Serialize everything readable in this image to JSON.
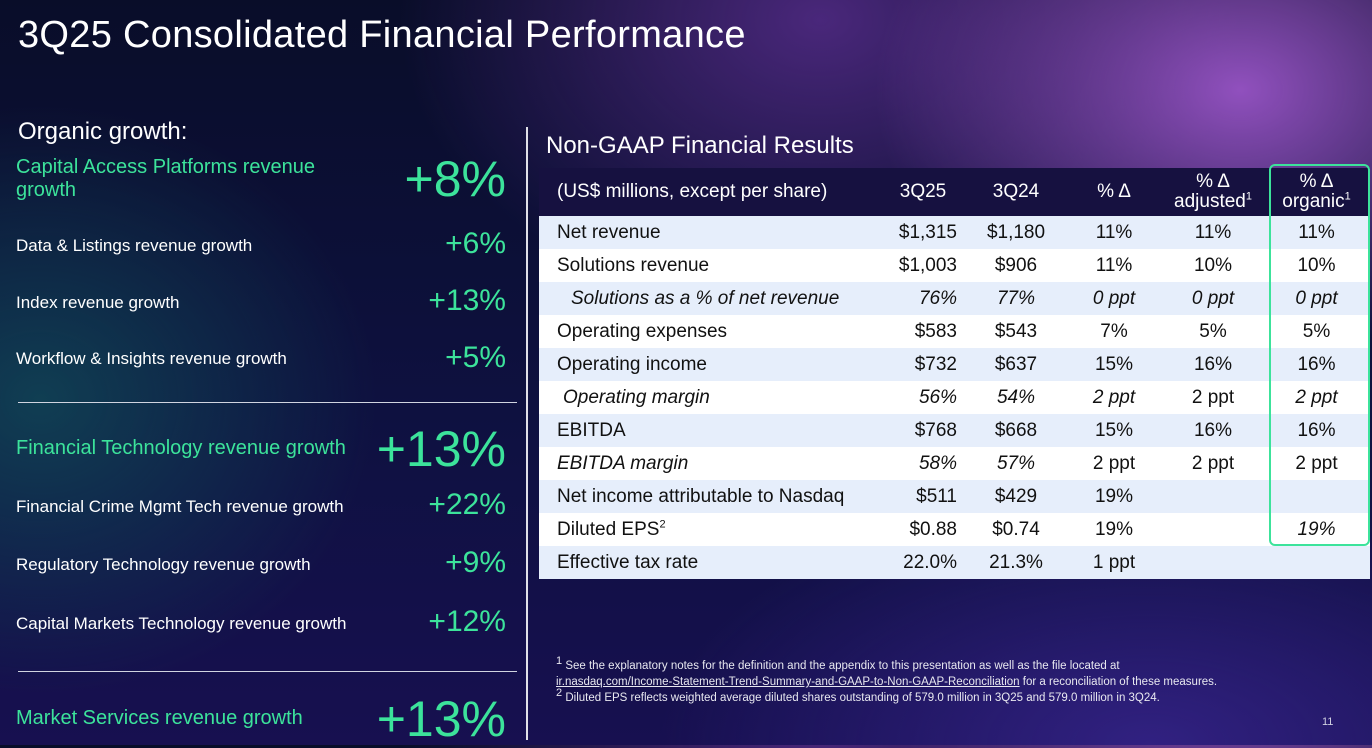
{
  "title": "3Q25 Consolidated Financial Performance",
  "organic": {
    "heading": "Organic growth:",
    "metrics": [
      {
        "label": "Capital Access Platforms revenue growth",
        "value": "+8%"
      },
      {
        "label": "Data & Listings revenue growth",
        "value": "+6%"
      },
      {
        "label": "Index revenue growth",
        "value": "+13%"
      },
      {
        "label": "Workflow & Insights revenue growth",
        "value": "+5%"
      },
      {
        "label": "Financial Technology revenue growth",
        "value": "+13%"
      },
      {
        "label": "Financial Crime Mgmt Tech revenue growth",
        "value": "+22%"
      },
      {
        "label": "Regulatory Technology revenue growth",
        "value": "+9%"
      },
      {
        "label": "Capital Markets Technology revenue growth",
        "value": "+12%"
      },
      {
        "label": "Market Services revenue growth",
        "value": "+13%"
      }
    ]
  },
  "table": {
    "title": "Non-GAAP Financial Results",
    "headers": {
      "label": "(US$ millions, except per share)",
      "c1": "3Q25",
      "c2": "3Q24",
      "c3": "% Δ",
      "c4a": "% Δ",
      "c4b": "adjusted",
      "c4sup": "1",
      "c5a": "% Δ",
      "c5b": "organic",
      "c5sup": "1"
    },
    "rows": [
      {
        "label": "Net revenue",
        "c1": "$1,315",
        "c2": "$1,180",
        "c3": "11%",
        "c4": "11%",
        "c5": "11%"
      },
      {
        "label": "Solutions revenue",
        "c1": "$1,003",
        "c2": "$906",
        "c3": "11%",
        "c4": "10%",
        "c5": "10%"
      },
      {
        "label": "Solutions as a % of net revenue",
        "c1": "76%",
        "c2": "77%",
        "c3": "0 ppt",
        "c4": "0 ppt",
        "c5": "0 ppt"
      },
      {
        "label": "Operating expenses",
        "c1": "$583",
        "c2": "$543",
        "c3": "7%",
        "c4": "5%",
        "c5": "5%"
      },
      {
        "label": "Operating income",
        "c1": "$732",
        "c2": "$637",
        "c3": "15%",
        "c4": "16%",
        "c5": "16%"
      },
      {
        "label": "Operating margin",
        "c1": "56%",
        "c2": "54%",
        "c3": "2 ppt",
        "c4": "2 ppt",
        "c5": "2 ppt"
      },
      {
        "label": "EBITDA",
        "c1": "$768",
        "c2": "$668",
        "c3": "15%",
        "c4": "16%",
        "c5": "16%"
      },
      {
        "label": "EBITDA margin",
        "c1": "58%",
        "c2": "57%",
        "c3": "2 ppt",
        "c4": "2 ppt",
        "c5": "2 ppt"
      },
      {
        "label": "Net income attributable to Nasdaq",
        "c1": "$511",
        "c2": "$429",
        "c3": "19%",
        "c4": "",
        "c5": ""
      },
      {
        "label": "Diluted EPS",
        "label_sup": "2",
        "c1": "$0.88",
        "c2": "$0.74",
        "c3": "19%",
        "c4": "",
        "c5": "19%"
      },
      {
        "label": "Effective tax rate",
        "c1": "22.0%",
        "c2": "21.3%",
        "c3": "1 ppt",
        "c4": "",
        "c5": ""
      }
    ]
  },
  "footnotes": {
    "f1_sup": "1",
    "f1_text": "See the explanatory notes for the definition and the appendix to this presentation as well as the file located at",
    "f1_link": "ir.nasdaq.com/Income-Statement-Trend-Summary-and-GAAP-to-Non-GAAP-Reconciliation",
    "f1_tail": " for a reconciliation of these measures.",
    "f2_sup": "2",
    "f2_text": "Diluted EPS reflects weighted average diluted shares outstanding of 579.0 million in 3Q25 and 579.0 million in 3Q24."
  },
  "page_number": "11",
  "colors": {
    "accent_green": "#3ce39b",
    "header_row": "#161140",
    "row_stripe": "#e6eefb"
  }
}
